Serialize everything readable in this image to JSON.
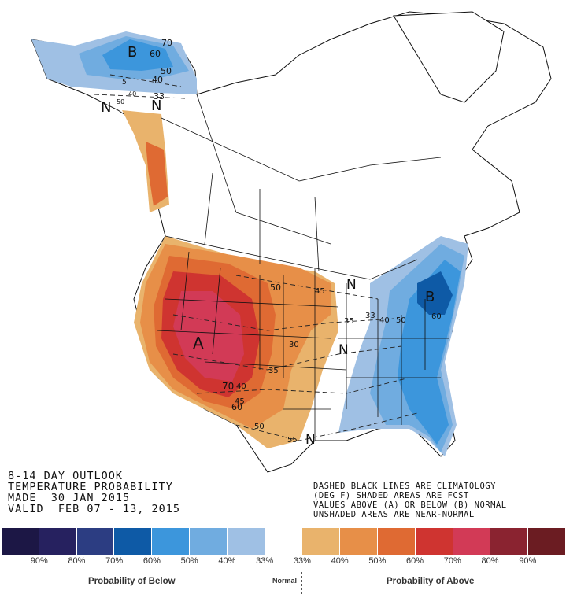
{
  "outlook": {
    "line1": "8-14 DAY OUTLOOK",
    "line2": "TEMPERATURE PROBABILITY",
    "line3": "MADE  30 JAN 2015",
    "line4": "VALID  FEB 07 - 13, 2015"
  },
  "note": {
    "line1": "DASHED BLACK LINES ARE CLIMATOLOGY",
    "line2": "(DEG F) SHADED AREAS ARE FCST",
    "line3": "VALUES ABOVE (A) OR BELOW (B) NORMAL",
    "line4": "UNSHADED AREAS ARE NEAR-NORMAL"
  },
  "legend": {
    "below_caption": "Probability of Below",
    "normal_caption": "Normal",
    "above_caption": "Probability of Above",
    "ticks": [
      "90%",
      "80%",
      "70%",
      "60%",
      "50%",
      "40%",
      "33%",
      "33%",
      "40%",
      "50%",
      "60%",
      "70%",
      "80%",
      "90%"
    ],
    "colors": [
      "#1c1745",
      "#26215f",
      "#2c3d82",
      "#0e5aa6",
      "#3c96dc",
      "#70ace0",
      "#9fc0e4",
      "#ffffff",
      "#e9b36c",
      "#e78f48",
      "#df6a33",
      "#cf3430",
      "#d23a56",
      "#8a2330",
      "#6b1c22"
    ]
  },
  "map_labels": {
    "alaska_b": "B",
    "alaska_n": "N",
    "west_a": "A",
    "east_b": "B",
    "n_midwest": "N",
    "n_plains": "N",
    "n_texas": "N",
    "clim_60": "60",
    "clim_50": "50",
    "clim_40": "40",
    "clim_33": "33",
    "clim_45": "45",
    "clim_35": "35",
    "clim_30": "30",
    "clim_70": "70",
    "clim_55": "55",
    "alaska_70": "70",
    "alaska_60": "60",
    "alaska_50": "50",
    "alaska_40": "40",
    "alaska_33": "33",
    "alaska_5": "5",
    "alaska_40b": "40",
    "alaska_50b": "50",
    "east_60": "60"
  }
}
